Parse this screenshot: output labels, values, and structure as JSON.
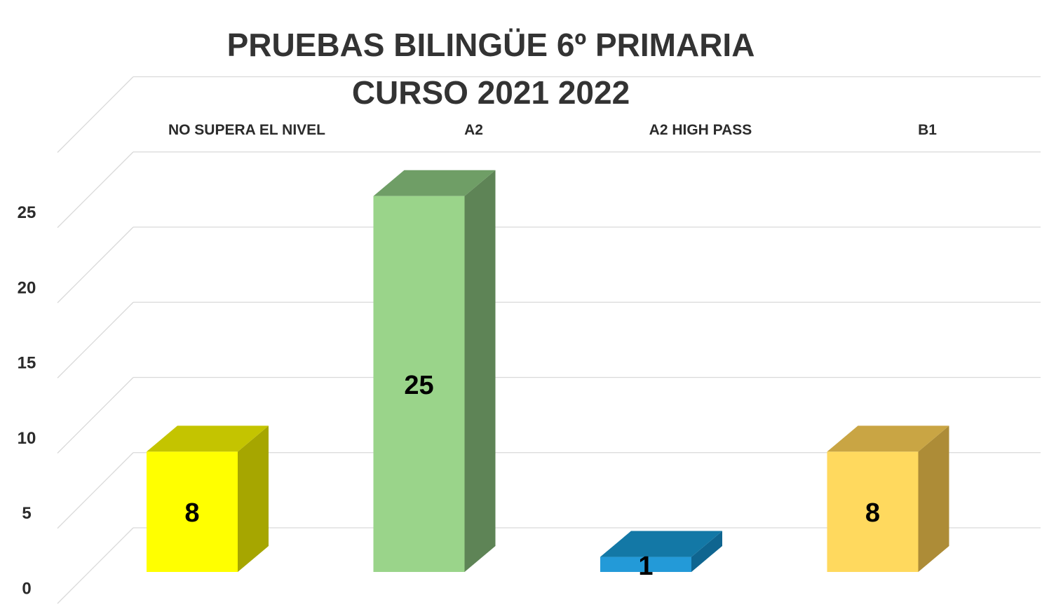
{
  "chart_data": {
    "type": "bar",
    "title": [
      "PRUEBAS BILINGÜE 6º PRIMARIA",
      "CURSO 2021 2022"
    ],
    "categories": [
      "NO SUPERA EL NIVEL",
      "A2",
      "A2 HIGH PASS",
      "B1"
    ],
    "values": [
      8,
      25,
      1,
      8
    ],
    "data_labels": [
      "8",
      "25",
      "1",
      "8"
    ],
    "yticks": [
      "0",
      "5",
      "10",
      "15",
      "20",
      "25"
    ],
    "ylim": [
      0,
      30
    ],
    "grid": true,
    "style": "3d-column",
    "category_label_position": "top",
    "legend": "none",
    "bar_colors": [
      {
        "front": "#ffff00",
        "top": "#c4c400",
        "side": "#a6a600"
      },
      {
        "front": "#9ad48a",
        "top": "#6f9e66",
        "side": "#5e8456"
      },
      {
        "front": "#239ad8",
        "top": "#1378a6",
        "side": "#0f6590"
      },
      {
        "front": "#ffd95e",
        "top": "#c9a544",
        "side": "#ad8c37"
      }
    ]
  }
}
